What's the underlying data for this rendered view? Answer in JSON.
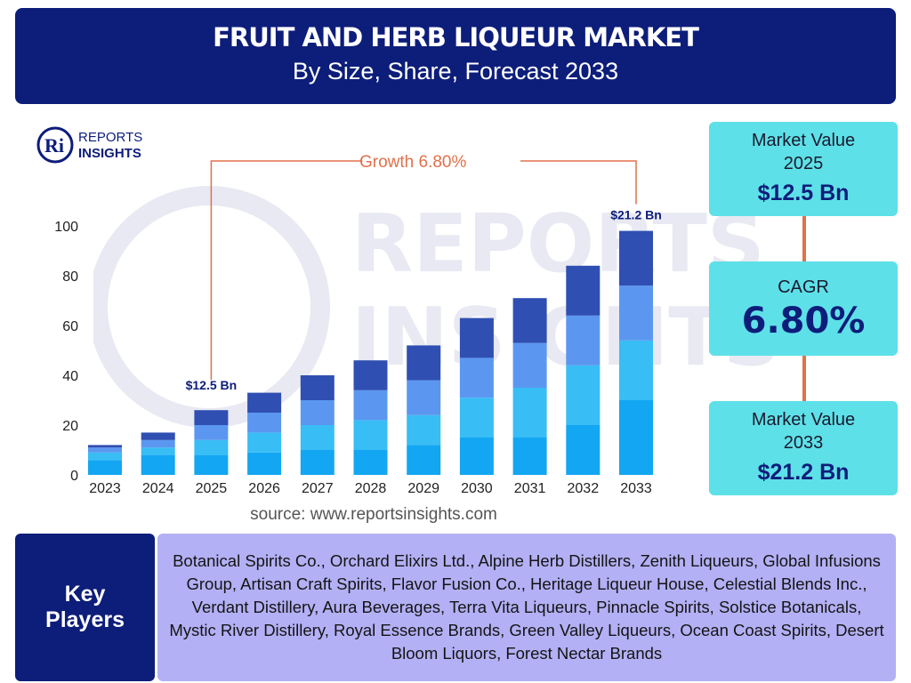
{
  "header": {
    "title": "FRUIT AND HERB LIQUEUR MARKET",
    "subtitle": "By Size, Share, Forecast 2033"
  },
  "logo": {
    "line1": "REPORTS",
    "line2": "INSIGHTS",
    "mark": "Ri"
  },
  "watermark": {
    "line1": "REPORTS",
    "line2": "INSIGHTS"
  },
  "chart_data": {
    "type": "bar",
    "stacked": true,
    "categories": [
      "2023",
      "2024",
      "2025",
      "2026",
      "2027",
      "2028",
      "2029",
      "2030",
      "2031",
      "2032",
      "2033"
    ],
    "series": [
      {
        "values": [
          6,
          8,
          8,
          9,
          10,
          10,
          12,
          15,
          15,
          20,
          30
        ]
      },
      {
        "values": [
          3,
          3,
          6,
          8,
          10,
          12,
          12,
          16,
          20,
          24,
          24
        ]
      },
      {
        "values": [
          2,
          3,
          6,
          8,
          10,
          12,
          14,
          16,
          18,
          20,
          22
        ]
      },
      {
        "values": [
          1,
          3,
          6,
          8,
          10,
          12,
          14,
          16,
          18,
          20,
          22
        ]
      }
    ],
    "colors": [
      "#13a6f2",
      "#38bdf5",
      "#5b97f0",
      "#2f4fb2"
    ],
    "ylim": [
      0,
      100
    ],
    "yticks": [
      0,
      20,
      40,
      60,
      80,
      100
    ],
    "annotations": {
      "start_label": "$12.5 Bn",
      "end_label": "$21.2 Bn",
      "growth": "Growth  6.80%"
    }
  },
  "source": "source: www.reportsinsights.com",
  "cards": {
    "value_2025": {
      "label": "Market Value 2025",
      "value": "$12.5 Bn"
    },
    "cagr": {
      "label": "CAGR",
      "value": "6.80%"
    },
    "value_2033": {
      "label": "Market Value 2033",
      "value": "$21.2 Bn"
    }
  },
  "key_players": {
    "label_line1": "Key",
    "label_line2": "Players",
    "list": "Botanical Spirits Co., Orchard Elixirs Ltd., Alpine Herb Distillers, Zenith Liqueurs, Global Infusions Group, Artisan Craft Spirits, Flavor Fusion Co., Heritage Liqueur House, Celestial Blends Inc., Verdant Distillery, Aura Beverages, Terra Vita Liqueurs, Pinnacle Spirits, Solstice Botanicals, Mystic River Distillery, Royal Essence Brands, Green Valley Liqueurs, Ocean Coast Spirits, Desert Bloom Liquors, Forest Nectar Brands"
  },
  "accent_colors": {
    "navy": "#0d1d7a",
    "cyan": "#5ee0e8",
    "orange": "#e0714b",
    "lavender": "#b3b0f5"
  }
}
